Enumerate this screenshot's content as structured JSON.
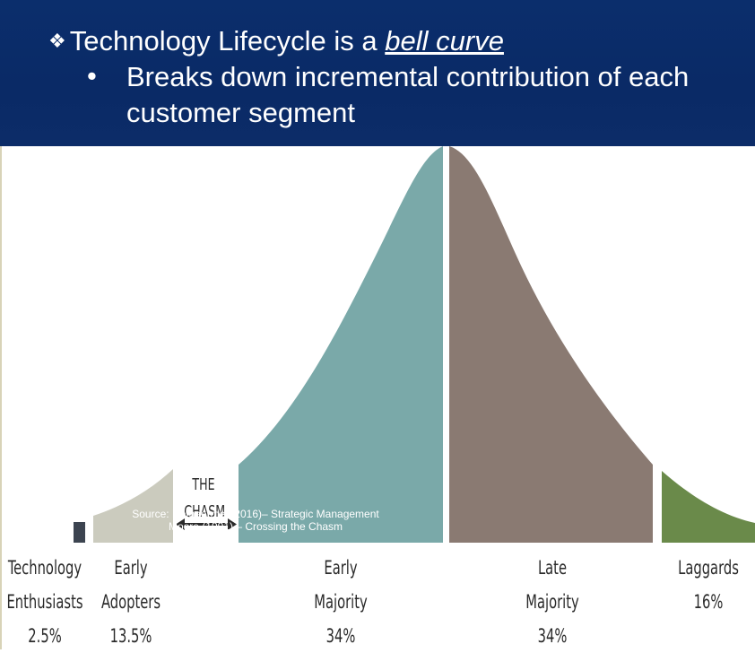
{
  "slide": {
    "title_prefix": "Technology Lifecycle is a ",
    "title_emphasis": "bell curve",
    "bullet_glyph": "•",
    "bullet_text": "Breaks down incremental contribution of each customer segment"
  },
  "chasm_label": [
    "THE",
    "CHASM"
  ],
  "source": [
    "Source: Rothaermel (2016)– Strategic Management",
    "Moore (1991) – Crossing the Chasm"
  ],
  "segments": [
    {
      "line1": "Technology",
      "line2": "Enthusiasts",
      "percent": "2.5%",
      "color": "#3c4450"
    },
    {
      "line1": "Early",
      "line2": "Adopters",
      "percent": "13.5%",
      "color": "#cbcbbe"
    },
    {
      "line1": "Early",
      "line2": "Majority",
      "percent": "34%",
      "color": "#7aa9a9"
    },
    {
      "line1": "Late",
      "line2": "Majority",
      "percent": "34%",
      "color": "#8a7a72"
    },
    {
      "line1": "Laggards",
      "line2": "",
      "percent": "16%",
      "color": "#6a8a4a"
    }
  ]
}
